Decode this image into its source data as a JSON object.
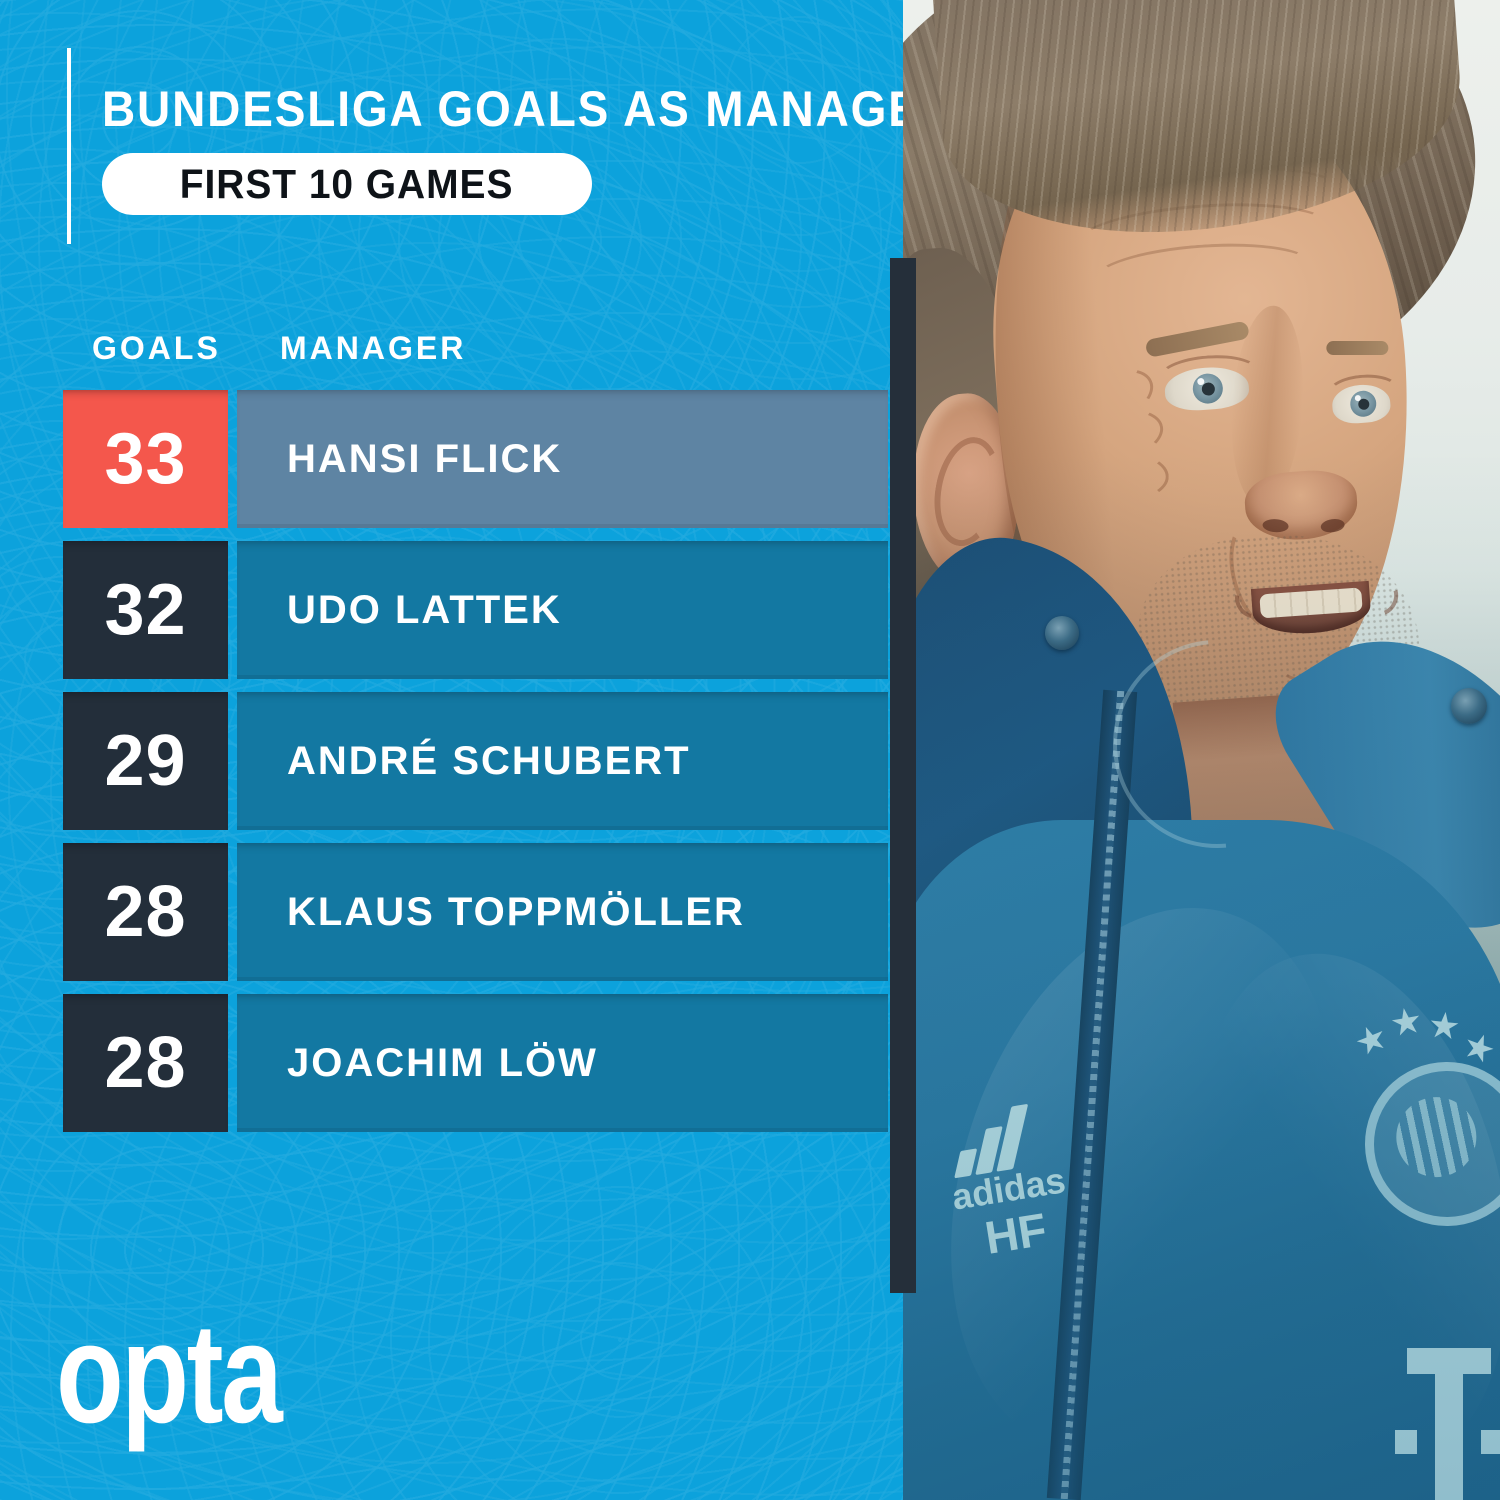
{
  "header": {
    "title": "BUNDESLIGA GOALS AS MANAGER",
    "subtitle": "FIRST 10 GAMES"
  },
  "table": {
    "goals_header": "GOALS",
    "manager_header": "MANAGER",
    "rows": [
      {
        "goals": "33",
        "manager": "HANSI FLICK",
        "highlight": true
      },
      {
        "goals": "32",
        "manager": "UDO LATTEK",
        "highlight": false
      },
      {
        "goals": "29",
        "manager": "ANDRÉ SCHUBERT",
        "highlight": false
      },
      {
        "goals": "28",
        "manager": "KLAUS TOPPMÖLLER",
        "highlight": false
      },
      {
        "goals": "28",
        "manager": "JOACHIM LÖW",
        "highlight": false
      }
    ]
  },
  "chart_data": {
    "type": "table",
    "title": "BUNDESLIGA GOALS AS MANAGER",
    "subtitle": "FIRST 10 GAMES",
    "columns": [
      "GOALS",
      "MANAGER"
    ],
    "rows": [
      [
        33,
        "HANSI FLICK"
      ],
      [
        32,
        "UDO LATTEK"
      ],
      [
        29,
        "ANDRÉ SCHUBERT"
      ],
      [
        28,
        "KLAUS TOPPMÖLLER"
      ],
      [
        28,
        "JOACHIM LÖW"
      ]
    ],
    "highlighted_row": "HANSI FLICK"
  },
  "branding": {
    "logo_text": "opta"
  },
  "photo": {
    "jacket_brand": "adidas",
    "jacket_initials": "HF",
    "jacket_t_logo_symbol": "T",
    "crest_star_symbol": "★"
  },
  "colors": {
    "background_cyan": "#0CA2DC",
    "highlight_goals_bg": "#F4574C",
    "goals_bg": "#232E3A",
    "highlight_bar_bg": "#5E84A3",
    "bar_bg": "#1378A2",
    "accent_bar": "#252F3A",
    "pill_bg": "#FFFFFF",
    "pill_text": "#0E1318",
    "text": "#FFFFFF"
  }
}
